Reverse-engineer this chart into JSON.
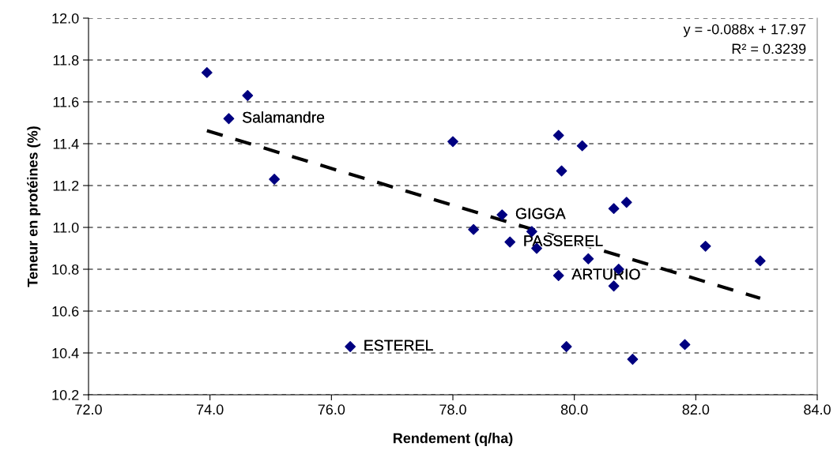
{
  "chart_data": {
    "type": "scatter",
    "xlabel": "Rendement (q/ha)",
    "ylabel": "Teneur en protéines (%)",
    "xlim": [
      72.0,
      84.0
    ],
    "xticks": [
      {
        "value": 72,
        "label": "72.0"
      },
      {
        "value": 74,
        "label": "74.0"
      },
      {
        "value": 76,
        "label": "76.0"
      },
      {
        "value": 78,
        "label": "78.0"
      },
      {
        "value": 80,
        "label": "80.0"
      },
      {
        "value": 82,
        "label": "82.0"
      },
      {
        "value": 84,
        "label": "84.0"
      }
    ],
    "ylim": [
      10.2,
      12.0
    ],
    "yticks": [
      10.2,
      10.4,
      10.6,
      10.8,
      {
        "value": 11,
        "label": "11.0"
      },
      11.2,
      11.4,
      11.6,
      11.8,
      {
        "value": 12,
        "label": "12.0"
      }
    ],
    "grid": "y",
    "legend": false,
    "series": [
      {
        "marker": "diamond",
        "color": "#000080",
        "x": [
          73.95,
          74.62,
          74.31,
          75.06,
          76.31,
          78.0,
          79.74,
          80.13,
          79.79,
          80.65,
          80.86,
          78.81,
          78.34,
          79.3,
          78.94,
          79.38,
          82.16,
          83.06,
          80.23,
          80.73,
          79.74,
          80.65,
          79.87,
          81.82,
          80.96
        ],
        "values": [
          11.74,
          11.63,
          11.52,
          11.23,
          10.43,
          11.41,
          11.44,
          11.39,
          11.27,
          11.09,
          11.12,
          11.06,
          10.99,
          10.98,
          10.93,
          10.9,
          10.91,
          10.84,
          10.85,
          10.8,
          10.77,
          10.72,
          10.43,
          10.44,
          10.37
        ]
      },
      {
        "type": "line",
        "marker": "none",
        "color": "#000000",
        "line_style": "dashed",
        "x": [
          73.95,
          83.06
        ],
        "values": [
          11.462,
          10.661
        ]
      }
    ],
    "annotations": [
      "y = -0.088x + 17.97",
      "R² = 0.3239",
      {
        "text": "Salamandre",
        "x": 74.31,
        "y": 11.52
      },
      {
        "text": "GIGGA",
        "x": 78.81,
        "y": 11.06
      },
      {
        "text": "PASSEREL",
        "x": 78.94,
        "y": 10.93
      },
      {
        "text": "ARTURIO",
        "x": 79.74,
        "y": 10.77
      },
      {
        "text": "ESTEREL",
        "x": 76.31,
        "y": 10.43
      }
    ]
  }
}
